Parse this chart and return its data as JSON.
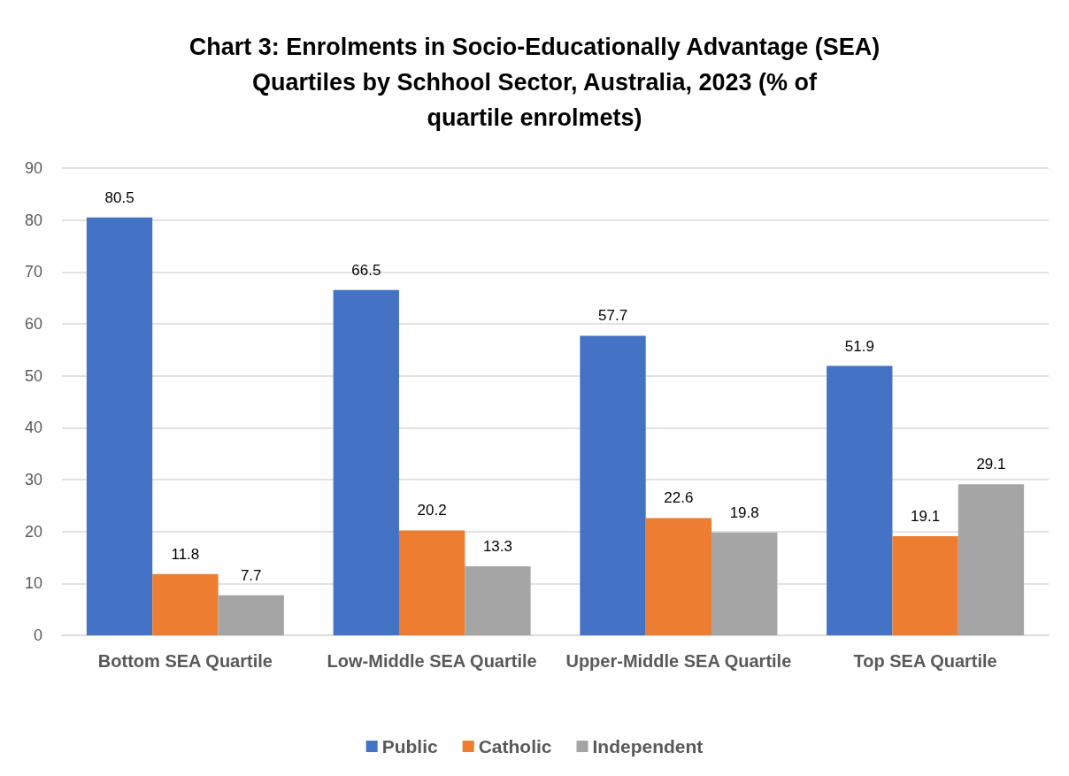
{
  "chart_data": {
    "type": "bar",
    "title": "Chart 3: Enrolments in Socio-Educationally Advantage (SEA) Quartiles by Schhool Sector, Australia, 2023 (% of quartile enrolmets)",
    "categories": [
      "Bottom SEA Quartile",
      "Low-Middle SEA Quartile",
      "Upper-Middle SEA Quartile",
      "Top SEA Quartile"
    ],
    "series": [
      {
        "name": "Public",
        "color": "#4472c4",
        "values": [
          80.5,
          66.5,
          57.7,
          51.9
        ]
      },
      {
        "name": "Catholic",
        "color": "#ed7d31",
        "values": [
          11.8,
          20.2,
          22.6,
          19.1
        ]
      },
      {
        "name": "Independent",
        "color": "#a5a5a5",
        "values": [
          7.7,
          13.3,
          19.8,
          29.1
        ]
      }
    ],
    "ylim": [
      0,
      90
    ],
    "yticks": [
      0,
      10,
      20,
      30,
      40,
      50,
      60,
      70,
      80,
      90
    ],
    "grid": "y",
    "legend": "bottom",
    "data_labels": true
  }
}
